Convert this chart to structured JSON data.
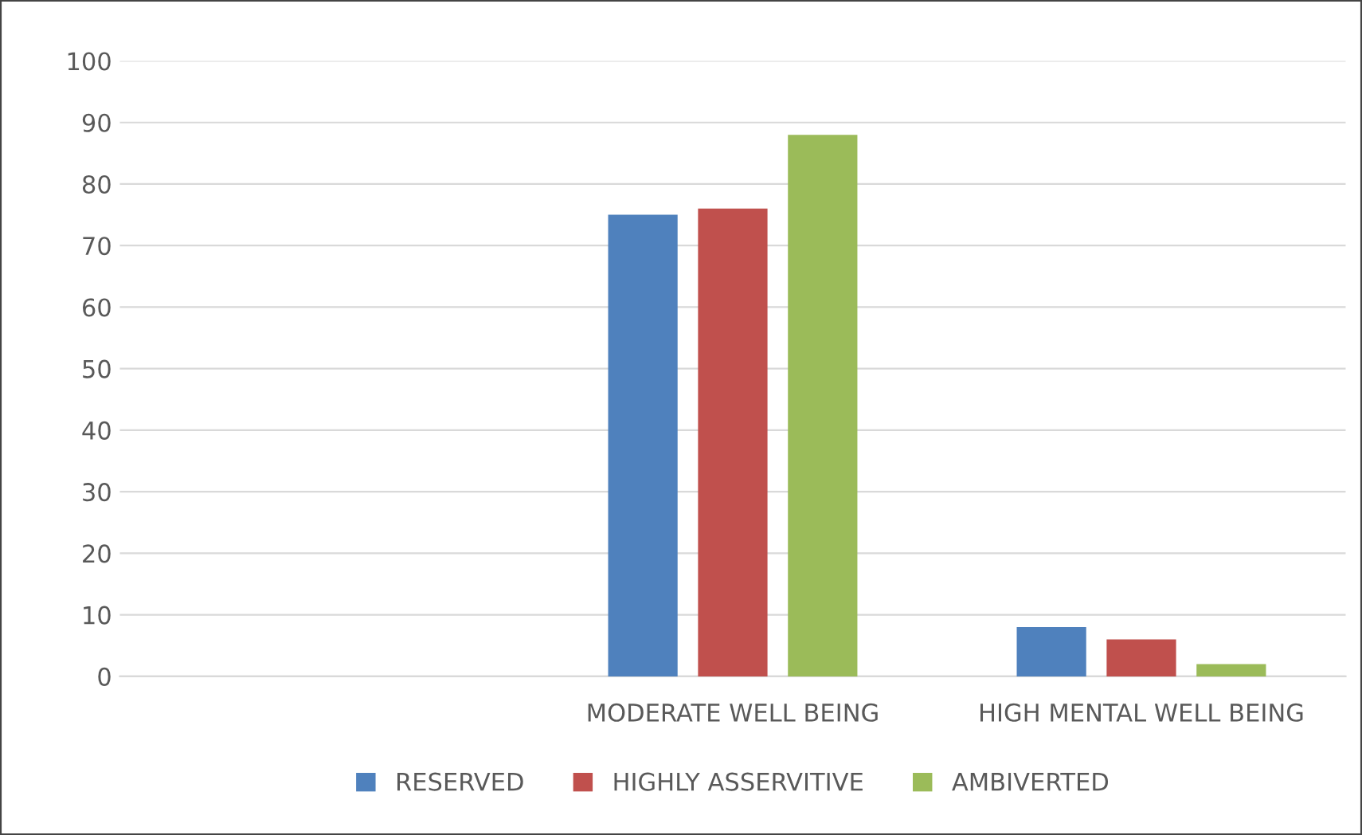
{
  "chart_data": {
    "type": "bar",
    "categories": [
      null,
      "MODERATE WELL BEING",
      "HIGH MENTAL WELL BEING"
    ],
    "series": [
      {
        "name": "RESERVED",
        "color": "#4f81bd",
        "values": [
          null,
          75,
          8
        ]
      },
      {
        "name": "HIGHLY ASSERVITIVE",
        "color": "#c0504d",
        "values": [
          null,
          76,
          6
        ]
      },
      {
        "name": "AMBIVERTED",
        "color": "#9bbb59",
        "values": [
          null,
          88,
          2
        ]
      }
    ],
    "ylim": [
      0,
      100
    ],
    "yticks": [
      0,
      10,
      20,
      30,
      40,
      50,
      60,
      70,
      80,
      90,
      100
    ],
    "grid": "y",
    "legend": "bottom"
  }
}
